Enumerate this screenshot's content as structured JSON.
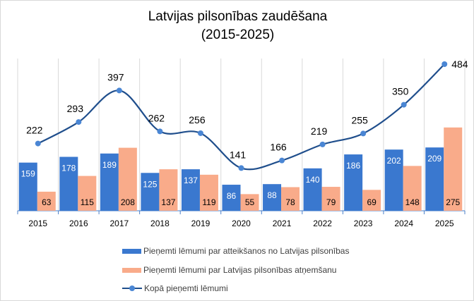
{
  "chart_data": {
    "type": "bar",
    "title_line1": "Latvijas pilsonības zaudēšana",
    "title_line2": "(2015-2025)",
    "categories": [
      "2015",
      "2016",
      "2017",
      "2018",
      "2019",
      "2020",
      "2021",
      "2022",
      "2023",
      "2024",
      "2025"
    ],
    "series": [
      {
        "name": "Pieņemti lēmumi par atteikšanos no Latvijas pilsonības",
        "type": "bar",
        "color": "#3a78cf",
        "values": [
          159,
          178,
          189,
          125,
          137,
          86,
          88,
          140,
          186,
          202,
          209
        ]
      },
      {
        "name": "Pieņemti lēmumi par Latvijas pilsonības atņemšanu",
        "type": "bar",
        "color": "#f9ab8a",
        "values": [
          63,
          115,
          208,
          137,
          119,
          55,
          78,
          79,
          69,
          148,
          275
        ]
      },
      {
        "name": "Kopā pieņemti lēmumi",
        "type": "line",
        "smooth": true,
        "color": "#1f4e8c",
        "marker_color": "#4a86d4",
        "values": [
          222,
          293,
          397,
          262,
          256,
          141,
          166,
          219,
          255,
          350,
          484
        ]
      }
    ],
    "ylim": [
      0,
      500
    ],
    "grid": "vertical",
    "legend_position": "bottom"
  }
}
